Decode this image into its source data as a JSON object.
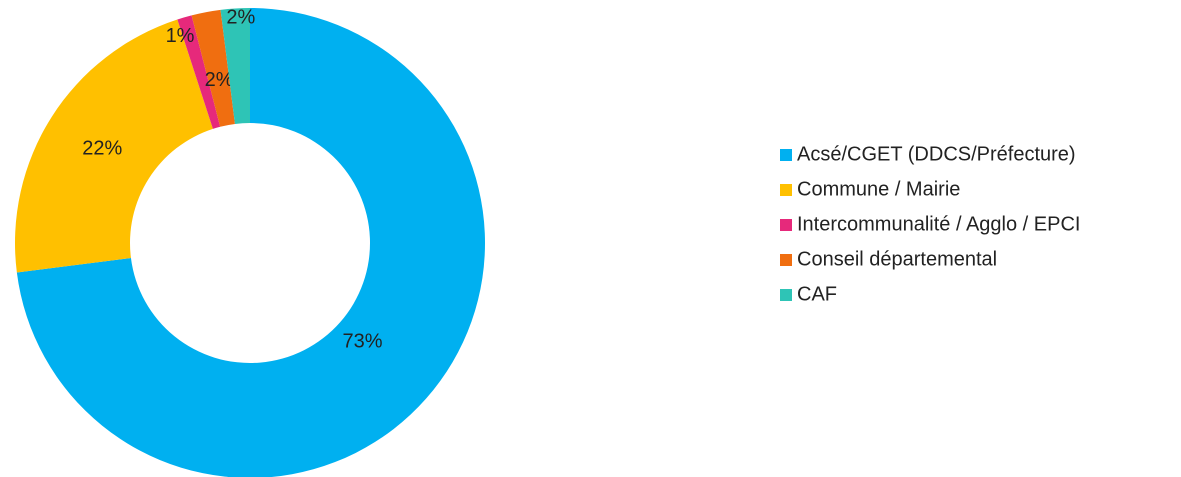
{
  "chart_data": {
    "type": "donut",
    "categories": [
      "Acsé/CGET (DDCS/Préfecture)",
      "Commune / Mairie",
      "Intercommunalité / Agglo / EPCI",
      "Conseil départemental",
      "CAF"
    ],
    "values": [
      73,
      22,
      1,
      2,
      2
    ],
    "value_labels": [
      "73%",
      "22%",
      "1%",
      "2%",
      "2%"
    ],
    "colors": [
      "#00b0f0",
      "#ffc000",
      "#e6297b",
      "#f06e10",
      "#2ec4b6"
    ],
    "legend": "right"
  }
}
